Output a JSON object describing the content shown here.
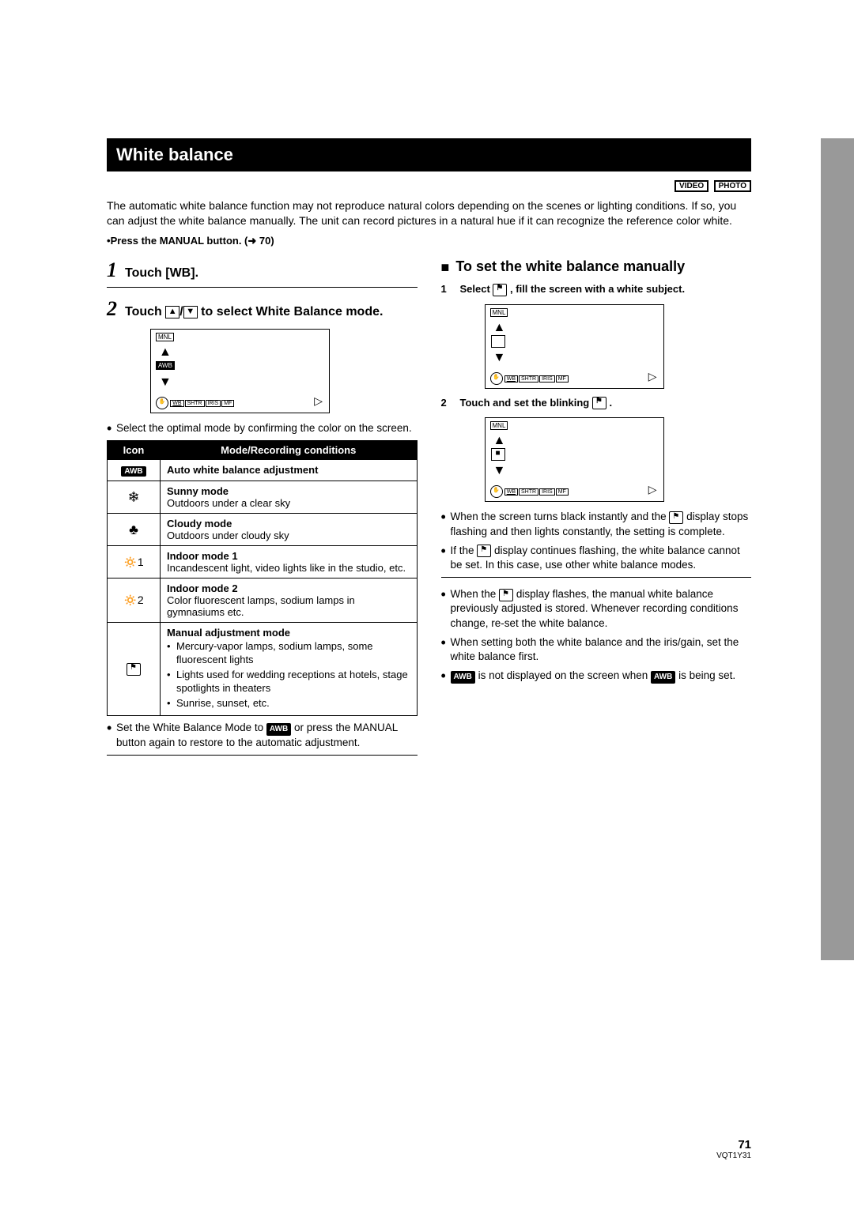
{
  "title": "White balance",
  "badges": {
    "video": "VIDEO",
    "photo": "PHOTO"
  },
  "intro": "The automatic white balance function may not reproduce natural colors depending on the scenes or lighting conditions. If so, you can adjust the white balance manually. The unit can record pictures in a natural hue if it can recognize the reference color white.",
  "press_manual": "Press the MANUAL button. (➜ 70)",
  "step1": {
    "num": "1",
    "text": "Touch [WB]."
  },
  "step2": {
    "num": "2",
    "text_pre": "Touch ",
    "text_post": "to select White Balance mode."
  },
  "select_optimal": "Select the optimal mode by confirming the color on the screen.",
  "table": {
    "headers": {
      "icon": "Icon",
      "mode": "Mode/Recording conditions"
    },
    "awb": "AWB",
    "rows": [
      {
        "icon": "AWB",
        "name": "Auto white balance adjustment",
        "desc": ""
      },
      {
        "icon": "☀",
        "name": "Sunny mode",
        "desc": "Outdoors under a clear sky"
      },
      {
        "icon": "☁",
        "name": "Cloudy mode",
        "desc": "Outdoors under cloudy sky"
      },
      {
        "icon": "☀1",
        "name": "Indoor mode 1",
        "desc": "Incandescent light, video lights like in the studio, etc."
      },
      {
        "icon": "☀2",
        "name": "Indoor mode 2",
        "desc": "Color fluorescent lamps, sodium lamps in gymnasiums etc."
      },
      {
        "icon": "⚑",
        "name": "Manual adjustment mode",
        "desc": ""
      }
    ],
    "manual_bullets": [
      "Mercury-vapor lamps, sodium lamps, some fluorescent lights",
      "Lights used for wedding receptions at hotels, stage spotlights in theaters",
      "Sunrise, sunset, etc."
    ]
  },
  "restore_note_pre": "Set the White Balance Mode to ",
  "restore_note_post": " or press the MANUAL button again to restore to the automatic adjustment.",
  "right": {
    "heading": "To set the white balance manually",
    "step1_pre": "Select ",
    "step1_post": " , fill the screen with a white subject.",
    "step2_pre": "Touch and set the blinking ",
    "step2_post": " .",
    "note1_pre": "When the screen turns black instantly and the ",
    "note1_post": " display stops flashing and then lights constantly, the setting is complete.",
    "note2_pre": "If the ",
    "note2_post": " display continues flashing, the white balance cannot be set. In this case, use other white balance modes.",
    "note3_pre": "When the ",
    "note3_post": " display flashes, the manual white balance previously adjusted is stored. Whenever recording conditions change, re-set the white balance.",
    "note4": "When setting both the white balance and the iris/gain, set the white balance first.",
    "note5_mid": " is not displayed on the screen when ",
    "note5_end": " is being set."
  },
  "screen": {
    "mnl": "MNL",
    "awb": "AWB",
    "tabs": {
      "wb": "WB",
      "shtr": "SHTR",
      "iris": "IRIS",
      "mf": "MF"
    }
  },
  "footer": {
    "page": "71",
    "code": "VQT1Y31"
  }
}
